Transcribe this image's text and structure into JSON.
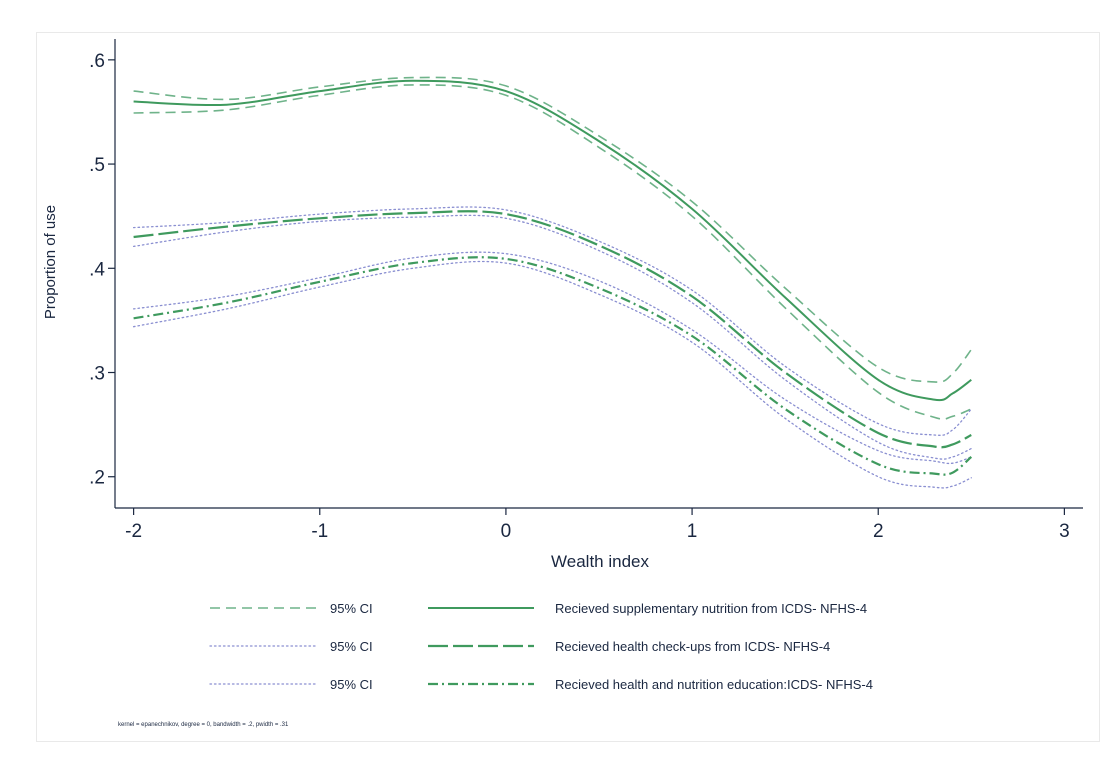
{
  "chart_data": {
    "type": "line",
    "title": "",
    "xlabel": "Wealth index",
    "ylabel": "Proportion of use",
    "xlim": [
      -2.1,
      3.1
    ],
    "ylim": [
      0.17,
      0.62
    ],
    "x_ticks": [
      {
        "value": -2,
        "label": "-2"
      },
      {
        "value": -1,
        "label": "-1"
      },
      {
        "value": 0,
        "label": "0"
      },
      {
        "value": 1,
        "label": "1"
      },
      {
        "value": 2,
        "label": "2"
      },
      {
        "value": 3,
        "label": "3"
      }
    ],
    "y_ticks": [
      {
        "value": 0.2,
        "label": ".2"
      },
      {
        "value": 0.3,
        "label": ".3"
      },
      {
        "value": 0.4,
        "label": ".4"
      },
      {
        "value": 0.5,
        "label": ".5"
      },
      {
        "value": 0.6,
        "label": ".6"
      }
    ],
    "grid": false,
    "legend_position": "bottom",
    "x": [
      -2.0,
      -1.5,
      -1.0,
      -0.5,
      0.0,
      0.5,
      1.0,
      1.5,
      2.0,
      2.3,
      2.4,
      2.5
    ],
    "series": [
      {
        "name": "95% CI",
        "role": "ci",
        "style": "dash",
        "color": "#6fb38a",
        "values": [
          0.57,
          0.562,
          0.574,
          0.583,
          0.575,
          0.527,
          0.464,
          0.381,
          0.305,
          0.291,
          0.299,
          0.322
        ]
      },
      {
        "name": "95% CI",
        "role": "ci",
        "style": "dash",
        "color": "#6fb38a",
        "values": [
          0.549,
          0.552,
          0.566,
          0.576,
          0.566,
          0.516,
          0.45,
          0.362,
          0.281,
          0.257,
          0.258,
          0.265
        ]
      },
      {
        "name": "Recieved supplementary nutrition from ICDS- NFHS-4",
        "role": "estimate",
        "style": "solid",
        "color": "#3f9a5e",
        "values": [
          0.56,
          0.557,
          0.57,
          0.58,
          0.57,
          0.522,
          0.457,
          0.372,
          0.293,
          0.274,
          0.28,
          0.293
        ]
      },
      {
        "name": "95% CI",
        "role": "ci",
        "style": "dot",
        "color": "#8a8fd1",
        "values": [
          0.439,
          0.444,
          0.452,
          0.457,
          0.456,
          0.426,
          0.379,
          0.306,
          0.251,
          0.24,
          0.245,
          0.265
        ]
      },
      {
        "name": "95% CI",
        "role": "ci",
        "style": "dot",
        "color": "#8a8fd1",
        "values": [
          0.421,
          0.435,
          0.445,
          0.449,
          0.448,
          0.417,
          0.367,
          0.293,
          0.233,
          0.218,
          0.219,
          0.227
        ]
      },
      {
        "name": "Recieved health check-ups from ICDS- NFHS-4",
        "role": "estimate",
        "style": "longdash",
        "color": "#3f9a5e",
        "values": [
          0.43,
          0.44,
          0.448,
          0.453,
          0.452,
          0.422,
          0.373,
          0.3,
          0.242,
          0.229,
          0.231,
          0.24
        ]
      },
      {
        "name": "95% CI",
        "role": "ci",
        "style": "dot",
        "color": "#8a8fd1",
        "values": [
          0.361,
          0.373,
          0.391,
          0.41,
          0.414,
          0.388,
          0.341,
          0.274,
          0.225,
          0.215,
          0.213,
          0.219
        ]
      },
      {
        "name": "95% CI",
        "role": "ci",
        "style": "dot",
        "color": "#8a8fd1",
        "values": [
          0.344,
          0.361,
          0.382,
          0.4,
          0.405,
          0.375,
          0.329,
          0.256,
          0.2,
          0.19,
          0.191,
          0.199
        ]
      },
      {
        "name": "Recieved health and nutrition education:ICDS- NFHS-4",
        "role": "estimate",
        "style": "dashdot",
        "color": "#3f9a5e",
        "values": [
          0.352,
          0.367,
          0.387,
          0.405,
          0.409,
          0.381,
          0.335,
          0.265,
          0.212,
          0.203,
          0.204,
          0.219
        ]
      }
    ]
  },
  "legend": {
    "rows": [
      {
        "ci_label": "95% CI",
        "ci_style": "dash",
        "est_style": "solid",
        "label": "Recieved supplementary nutrition from ICDS- NFHS-4"
      },
      {
        "ci_label": "95% CI",
        "ci_style": "dot",
        "est_style": "longdash",
        "label": "Recieved health check-ups from ICDS- NFHS-4"
      },
      {
        "ci_label": "95% CI",
        "ci_style": "dot",
        "est_style": "dashdot",
        "label": "Recieved health and nutrition education:ICDS- NFHS-4"
      }
    ]
  },
  "note": "kernel = epanechnikov, degree = 0, bandwidth = .2, pwidth = .31"
}
